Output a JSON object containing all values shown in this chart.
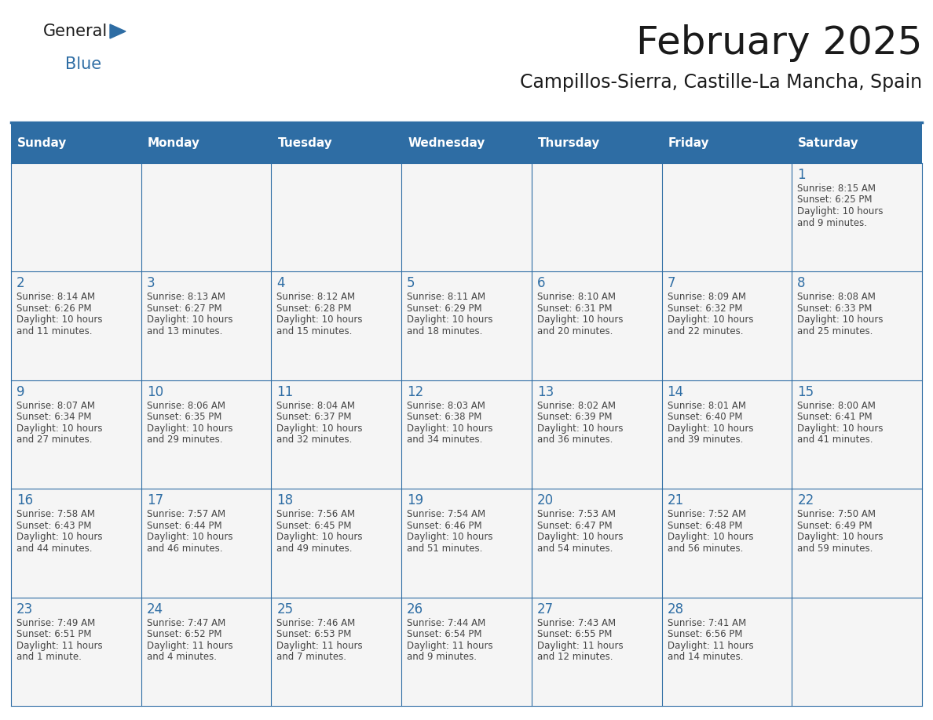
{
  "title": "February 2025",
  "subtitle": "Campillos-Sierra, Castille-La Mancha, Spain",
  "header_bg": "#2E6DA4",
  "header_text": "#FFFFFF",
  "day_headers": [
    "Sunday",
    "Monday",
    "Tuesday",
    "Wednesday",
    "Thursday",
    "Friday",
    "Saturday"
  ],
  "days": [
    {
      "day": 1,
      "col": 6,
      "row": 0,
      "sunrise": "8:15 AM",
      "sunset": "6:25 PM",
      "daylight_line1": "Daylight: 10 hours",
      "daylight_line2": "and 9 minutes."
    },
    {
      "day": 2,
      "col": 0,
      "row": 1,
      "sunrise": "8:14 AM",
      "sunset": "6:26 PM",
      "daylight_line1": "Daylight: 10 hours",
      "daylight_line2": "and 11 minutes."
    },
    {
      "day": 3,
      "col": 1,
      "row": 1,
      "sunrise": "8:13 AM",
      "sunset": "6:27 PM",
      "daylight_line1": "Daylight: 10 hours",
      "daylight_line2": "and 13 minutes."
    },
    {
      "day": 4,
      "col": 2,
      "row": 1,
      "sunrise": "8:12 AM",
      "sunset": "6:28 PM",
      "daylight_line1": "Daylight: 10 hours",
      "daylight_line2": "and 15 minutes."
    },
    {
      "day": 5,
      "col": 3,
      "row": 1,
      "sunrise": "8:11 AM",
      "sunset": "6:29 PM",
      "daylight_line1": "Daylight: 10 hours",
      "daylight_line2": "and 18 minutes."
    },
    {
      "day": 6,
      "col": 4,
      "row": 1,
      "sunrise": "8:10 AM",
      "sunset": "6:31 PM",
      "daylight_line1": "Daylight: 10 hours",
      "daylight_line2": "and 20 minutes."
    },
    {
      "day": 7,
      "col": 5,
      "row": 1,
      "sunrise": "8:09 AM",
      "sunset": "6:32 PM",
      "daylight_line1": "Daylight: 10 hours",
      "daylight_line2": "and 22 minutes."
    },
    {
      "day": 8,
      "col": 6,
      "row": 1,
      "sunrise": "8:08 AM",
      "sunset": "6:33 PM",
      "daylight_line1": "Daylight: 10 hours",
      "daylight_line2": "and 25 minutes."
    },
    {
      "day": 9,
      "col": 0,
      "row": 2,
      "sunrise": "8:07 AM",
      "sunset": "6:34 PM",
      "daylight_line1": "Daylight: 10 hours",
      "daylight_line2": "and 27 minutes."
    },
    {
      "day": 10,
      "col": 1,
      "row": 2,
      "sunrise": "8:06 AM",
      "sunset": "6:35 PM",
      "daylight_line1": "Daylight: 10 hours",
      "daylight_line2": "and 29 minutes."
    },
    {
      "day": 11,
      "col": 2,
      "row": 2,
      "sunrise": "8:04 AM",
      "sunset": "6:37 PM",
      "daylight_line1": "Daylight: 10 hours",
      "daylight_line2": "and 32 minutes."
    },
    {
      "day": 12,
      "col": 3,
      "row": 2,
      "sunrise": "8:03 AM",
      "sunset": "6:38 PM",
      "daylight_line1": "Daylight: 10 hours",
      "daylight_line2": "and 34 minutes."
    },
    {
      "day": 13,
      "col": 4,
      "row": 2,
      "sunrise": "8:02 AM",
      "sunset": "6:39 PM",
      "daylight_line1": "Daylight: 10 hours",
      "daylight_line2": "and 36 minutes."
    },
    {
      "day": 14,
      "col": 5,
      "row": 2,
      "sunrise": "8:01 AM",
      "sunset": "6:40 PM",
      "daylight_line1": "Daylight: 10 hours",
      "daylight_line2": "and 39 minutes."
    },
    {
      "day": 15,
      "col": 6,
      "row": 2,
      "sunrise": "8:00 AM",
      "sunset": "6:41 PM",
      "daylight_line1": "Daylight: 10 hours",
      "daylight_line2": "and 41 minutes."
    },
    {
      "day": 16,
      "col": 0,
      "row": 3,
      "sunrise": "7:58 AM",
      "sunset": "6:43 PM",
      "daylight_line1": "Daylight: 10 hours",
      "daylight_line2": "and 44 minutes."
    },
    {
      "day": 17,
      "col": 1,
      "row": 3,
      "sunrise": "7:57 AM",
      "sunset": "6:44 PM",
      "daylight_line1": "Daylight: 10 hours",
      "daylight_line2": "and 46 minutes."
    },
    {
      "day": 18,
      "col": 2,
      "row": 3,
      "sunrise": "7:56 AM",
      "sunset": "6:45 PM",
      "daylight_line1": "Daylight: 10 hours",
      "daylight_line2": "and 49 minutes."
    },
    {
      "day": 19,
      "col": 3,
      "row": 3,
      "sunrise": "7:54 AM",
      "sunset": "6:46 PM",
      "daylight_line1": "Daylight: 10 hours",
      "daylight_line2": "and 51 minutes."
    },
    {
      "day": 20,
      "col": 4,
      "row": 3,
      "sunrise": "7:53 AM",
      "sunset": "6:47 PM",
      "daylight_line1": "Daylight: 10 hours",
      "daylight_line2": "and 54 minutes."
    },
    {
      "day": 21,
      "col": 5,
      "row": 3,
      "sunrise": "7:52 AM",
      "sunset": "6:48 PM",
      "daylight_line1": "Daylight: 10 hours",
      "daylight_line2": "and 56 minutes."
    },
    {
      "day": 22,
      "col": 6,
      "row": 3,
      "sunrise": "7:50 AM",
      "sunset": "6:49 PM",
      "daylight_line1": "Daylight: 10 hours",
      "daylight_line2": "and 59 minutes."
    },
    {
      "day": 23,
      "col": 0,
      "row": 4,
      "sunrise": "7:49 AM",
      "sunset": "6:51 PM",
      "daylight_line1": "Daylight: 11 hours",
      "daylight_line2": "and 1 minute."
    },
    {
      "day": 24,
      "col": 1,
      "row": 4,
      "sunrise": "7:47 AM",
      "sunset": "6:52 PM",
      "daylight_line1": "Daylight: 11 hours",
      "daylight_line2": "and 4 minutes."
    },
    {
      "day": 25,
      "col": 2,
      "row": 4,
      "sunrise": "7:46 AM",
      "sunset": "6:53 PM",
      "daylight_line1": "Daylight: 11 hours",
      "daylight_line2": "and 7 minutes."
    },
    {
      "day": 26,
      "col": 3,
      "row": 4,
      "sunrise": "7:44 AM",
      "sunset": "6:54 PM",
      "daylight_line1": "Daylight: 11 hours",
      "daylight_line2": "and 9 minutes."
    },
    {
      "day": 27,
      "col": 4,
      "row": 4,
      "sunrise": "7:43 AM",
      "sunset": "6:55 PM",
      "daylight_line1": "Daylight: 11 hours",
      "daylight_line2": "and 12 minutes."
    },
    {
      "day": 28,
      "col": 5,
      "row": 4,
      "sunrise": "7:41 AM",
      "sunset": "6:56 PM",
      "daylight_line1": "Daylight: 11 hours",
      "daylight_line2": "and 14 minutes."
    }
  ],
  "num_rows": 5,
  "num_cols": 7,
  "header_color": "#2E6DA4",
  "border_color": "#2E6DA4",
  "day_num_color": "#2E6DA4",
  "text_color": "#444444",
  "cell_bg": "#F5F5F5",
  "logo_color_general": "#1A1A1A",
  "logo_color_blue": "#2E6DA4",
  "title_fontsize": 36,
  "subtitle_fontsize": 17,
  "header_fontsize": 11,
  "day_num_fontsize": 12,
  "cell_text_fontsize": 8.5
}
